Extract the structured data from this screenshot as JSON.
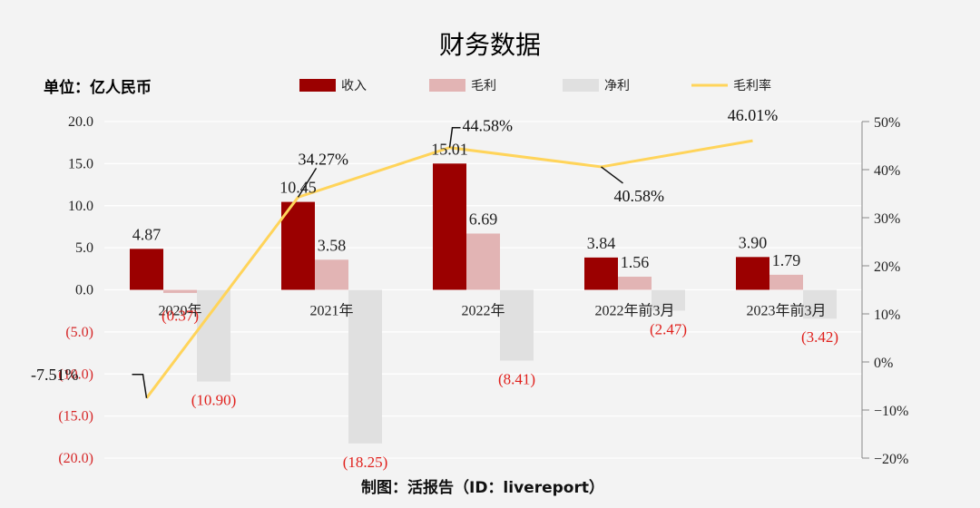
{
  "chart_data": {
    "type": "bar",
    "title": "财务数据",
    "unit_label": "单位：亿人民币",
    "categories": [
      "2020年",
      "2021年",
      "2022年",
      "2022年前3月",
      "2023年前3月"
    ],
    "series": [
      {
        "name": "收入",
        "kind": "bar",
        "axis": "left",
        "color": "#9b0000",
        "values": [
          4.87,
          10.45,
          15.01,
          3.84,
          3.9
        ],
        "labels": [
          "4.87",
          "10.45",
          "15.01",
          "3.84",
          "3.90"
        ]
      },
      {
        "name": "毛利",
        "kind": "bar",
        "axis": "left",
        "color": "#e2b4b4",
        "values": [
          -0.37,
          3.58,
          6.69,
          1.56,
          1.79
        ],
        "labels": [
          "(0.37)",
          "3.58",
          "6.69",
          "1.56",
          "1.79"
        ]
      },
      {
        "name": "净利",
        "kind": "bar",
        "axis": "left",
        "color": "#e0e0e0",
        "values": [
          -10.9,
          -18.25,
          -8.41,
          -2.47,
          -3.42
        ],
        "labels": [
          "(10.90)",
          "(18.25)",
          "(8.41)",
          "(2.47)",
          "(3.42)"
        ]
      },
      {
        "name": "毛利率",
        "kind": "line",
        "axis": "right",
        "color": "#ffd45a",
        "values": [
          -7.51,
          34.27,
          44.58,
          40.58,
          46.01
        ],
        "labels": [
          "-7.51%",
          "34.27%",
          "44.58%",
          "40.58%",
          "46.01%"
        ]
      }
    ],
    "y_left": {
      "ylim": [
        -20,
        20
      ],
      "ticks": [
        20,
        15,
        10,
        5,
        0,
        -5,
        -10,
        -15,
        -20
      ],
      "tick_labels": [
        "20.0",
        "15.0",
        "10.0",
        "5.0",
        "0.0",
        "(5.0)",
        "(10.0)",
        "(15.0)",
        "(20.0)"
      ]
    },
    "y_right": {
      "ylim": [
        -20,
        50
      ],
      "ticks": [
        50,
        40,
        30,
        20,
        10,
        0,
        -10,
        -20
      ],
      "tick_labels": [
        "50%",
        "40%",
        "30%",
        "20%",
        "10%",
        "0%",
        "−10%",
        "−20%"
      ]
    },
    "grid": true,
    "legend_position": "top"
  },
  "footer": {
    "credit": "制图：活报告（ID：livereport）"
  }
}
